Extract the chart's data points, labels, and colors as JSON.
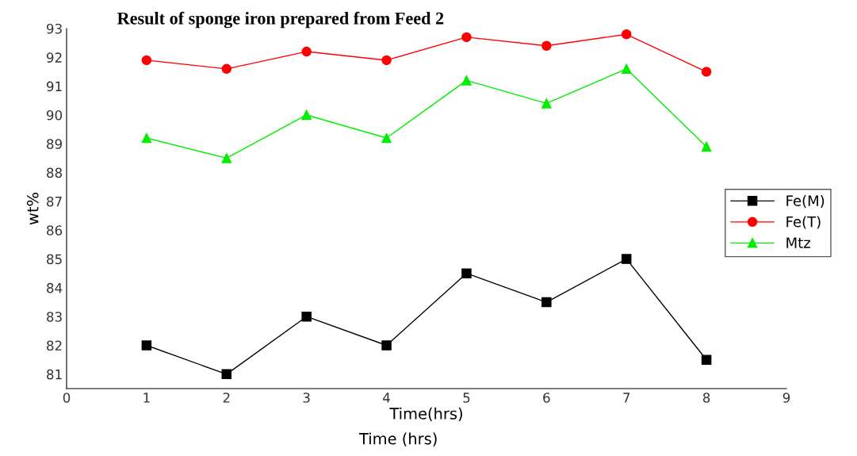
{
  "chart_data": {
    "type": "line",
    "title": "Result of sponge iron prepared from Feed 2",
    "xlabel": "Time(hrs)",
    "ylabel": "wt%",
    "annotations": [
      "Time (hrs)"
    ],
    "x": [
      1,
      2,
      3,
      4,
      5,
      6,
      7,
      8
    ],
    "series": [
      {
        "name": "Fe(M)",
        "color": "#000000",
        "marker": "square",
        "values": [
          82.0,
          81.0,
          83.0,
          82.0,
          84.5,
          83.5,
          85.0,
          81.5
        ]
      },
      {
        "name": "Fe(T)",
        "color": "#ff0000",
        "marker": "circle",
        "values": [
          91.9,
          91.6,
          92.2,
          91.9,
          92.7,
          92.4,
          92.8,
          91.5
        ]
      },
      {
        "name": "Mtz",
        "color": "#00ee00",
        "marker": "triangle",
        "values": [
          89.2,
          88.5,
          90.0,
          89.2,
          91.2,
          90.4,
          91.6,
          88.9
        ]
      }
    ],
    "xlim": [
      0,
      9
    ],
    "xticks": [
      0,
      1,
      2,
      3,
      4,
      5,
      6,
      7,
      8,
      9
    ],
    "ylim": [
      80.5,
      93
    ],
    "yticks": [
      81,
      82,
      83,
      84,
      85,
      86,
      87,
      88,
      89,
      90,
      91,
      92,
      93
    ],
    "grid": false,
    "legend": "right",
    "line_style": "solid"
  }
}
